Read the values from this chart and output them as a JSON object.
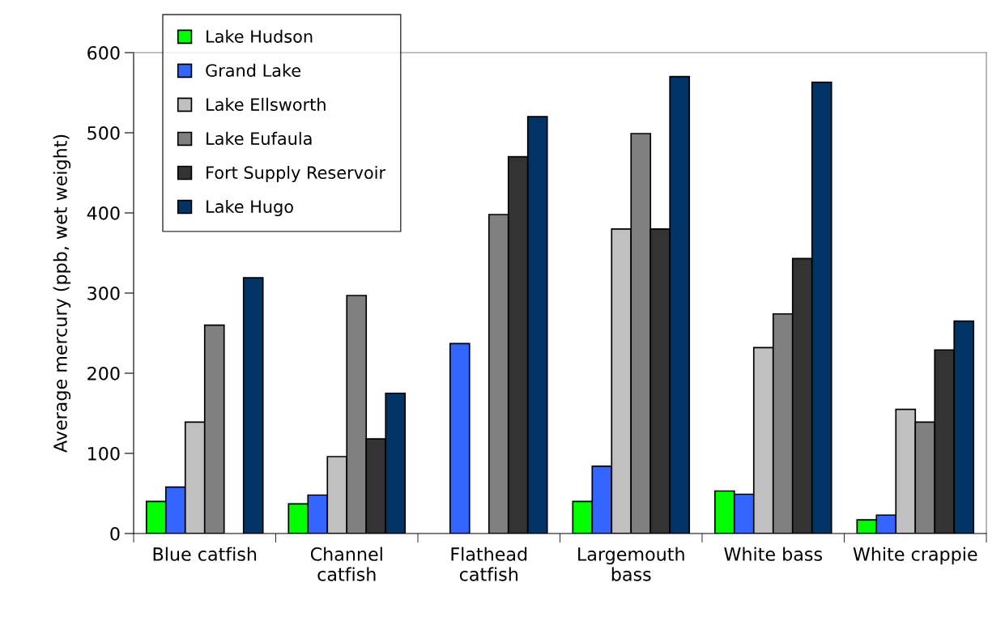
{
  "chart_data": {
    "type": "bar",
    "ylabel": "Average mercury (ppb, wet weight)",
    "categories": [
      "Blue catfish",
      "Channel\ncatfish",
      "Flathead\ncatfish",
      "Largemouth\nbass",
      "White bass",
      "White crappie"
    ],
    "series": [
      {
        "name": "Lake Hudson",
        "color": "#00ff00",
        "values": [
          40,
          37,
          null,
          40,
          53,
          17
        ]
      },
      {
        "name": "Grand Lake",
        "color": "#3366ff",
        "values": [
          58,
          48,
          237,
          84,
          49,
          23
        ]
      },
      {
        "name": "Lake Ellsworth",
        "color": "#c0c0c0",
        "values": [
          139,
          96,
          null,
          380,
          232,
          155
        ]
      },
      {
        "name": "Lake Eufaula",
        "color": "#808080",
        "values": [
          260,
          297,
          398,
          499,
          274,
          139
        ]
      },
      {
        "name": "Fort Supply Reservoir",
        "color": "#333333",
        "values": [
          null,
          118,
          470,
          380,
          343,
          229
        ]
      },
      {
        "name": "Lake Hugo",
        "color": "#003366",
        "values": [
          319,
          175,
          520,
          570,
          563,
          265
        ]
      }
    ],
    "ylim": [
      0,
      600
    ],
    "yticks": [
      0,
      100,
      200,
      300,
      400,
      500,
      600
    ],
    "grid": false,
    "legend": "top left"
  }
}
